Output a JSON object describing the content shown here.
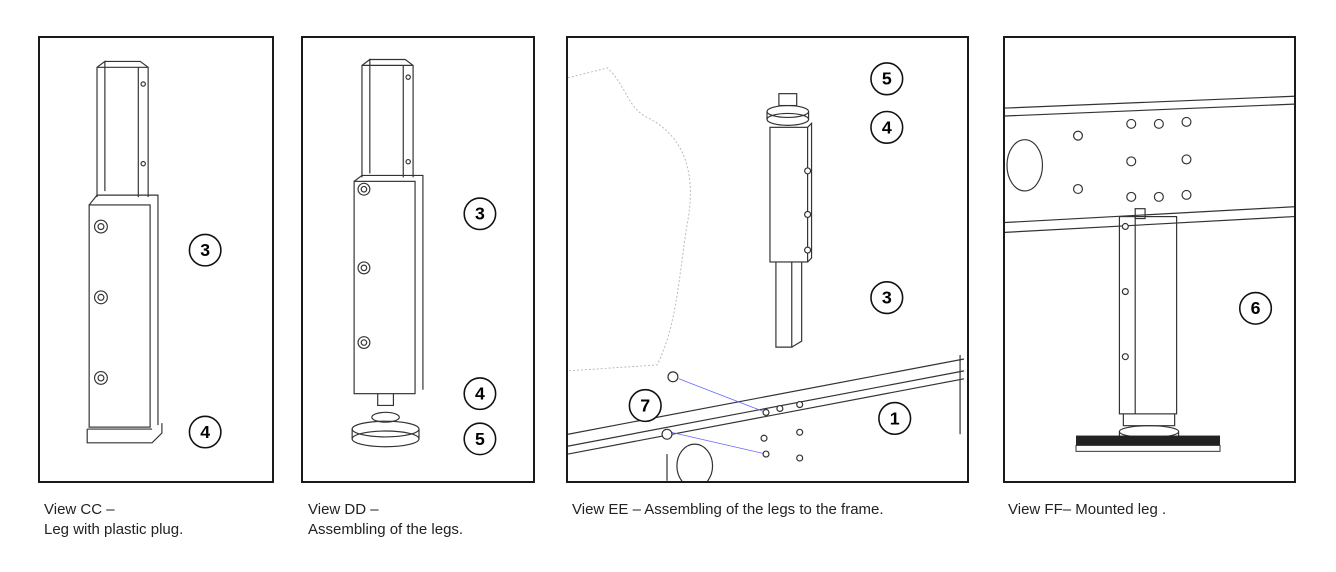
{
  "views": [
    {
      "caption_line1": "View CC –",
      "caption_line2": "Leg with plastic plug.",
      "callouts": [
        "3",
        "4"
      ]
    },
    {
      "caption_line1": "View DD –",
      "caption_line2": "Assembling of the legs.",
      "callouts": [
        "3",
        "4",
        "5"
      ]
    },
    {
      "caption_line1": "View EE – Assembling of the legs to the frame.",
      "callouts": [
        "5",
        "4",
        "3",
        "7",
        "1"
      ]
    },
    {
      "caption_line1": "View FF– Mounted leg .",
      "callouts": [
        "6"
      ]
    }
  ]
}
